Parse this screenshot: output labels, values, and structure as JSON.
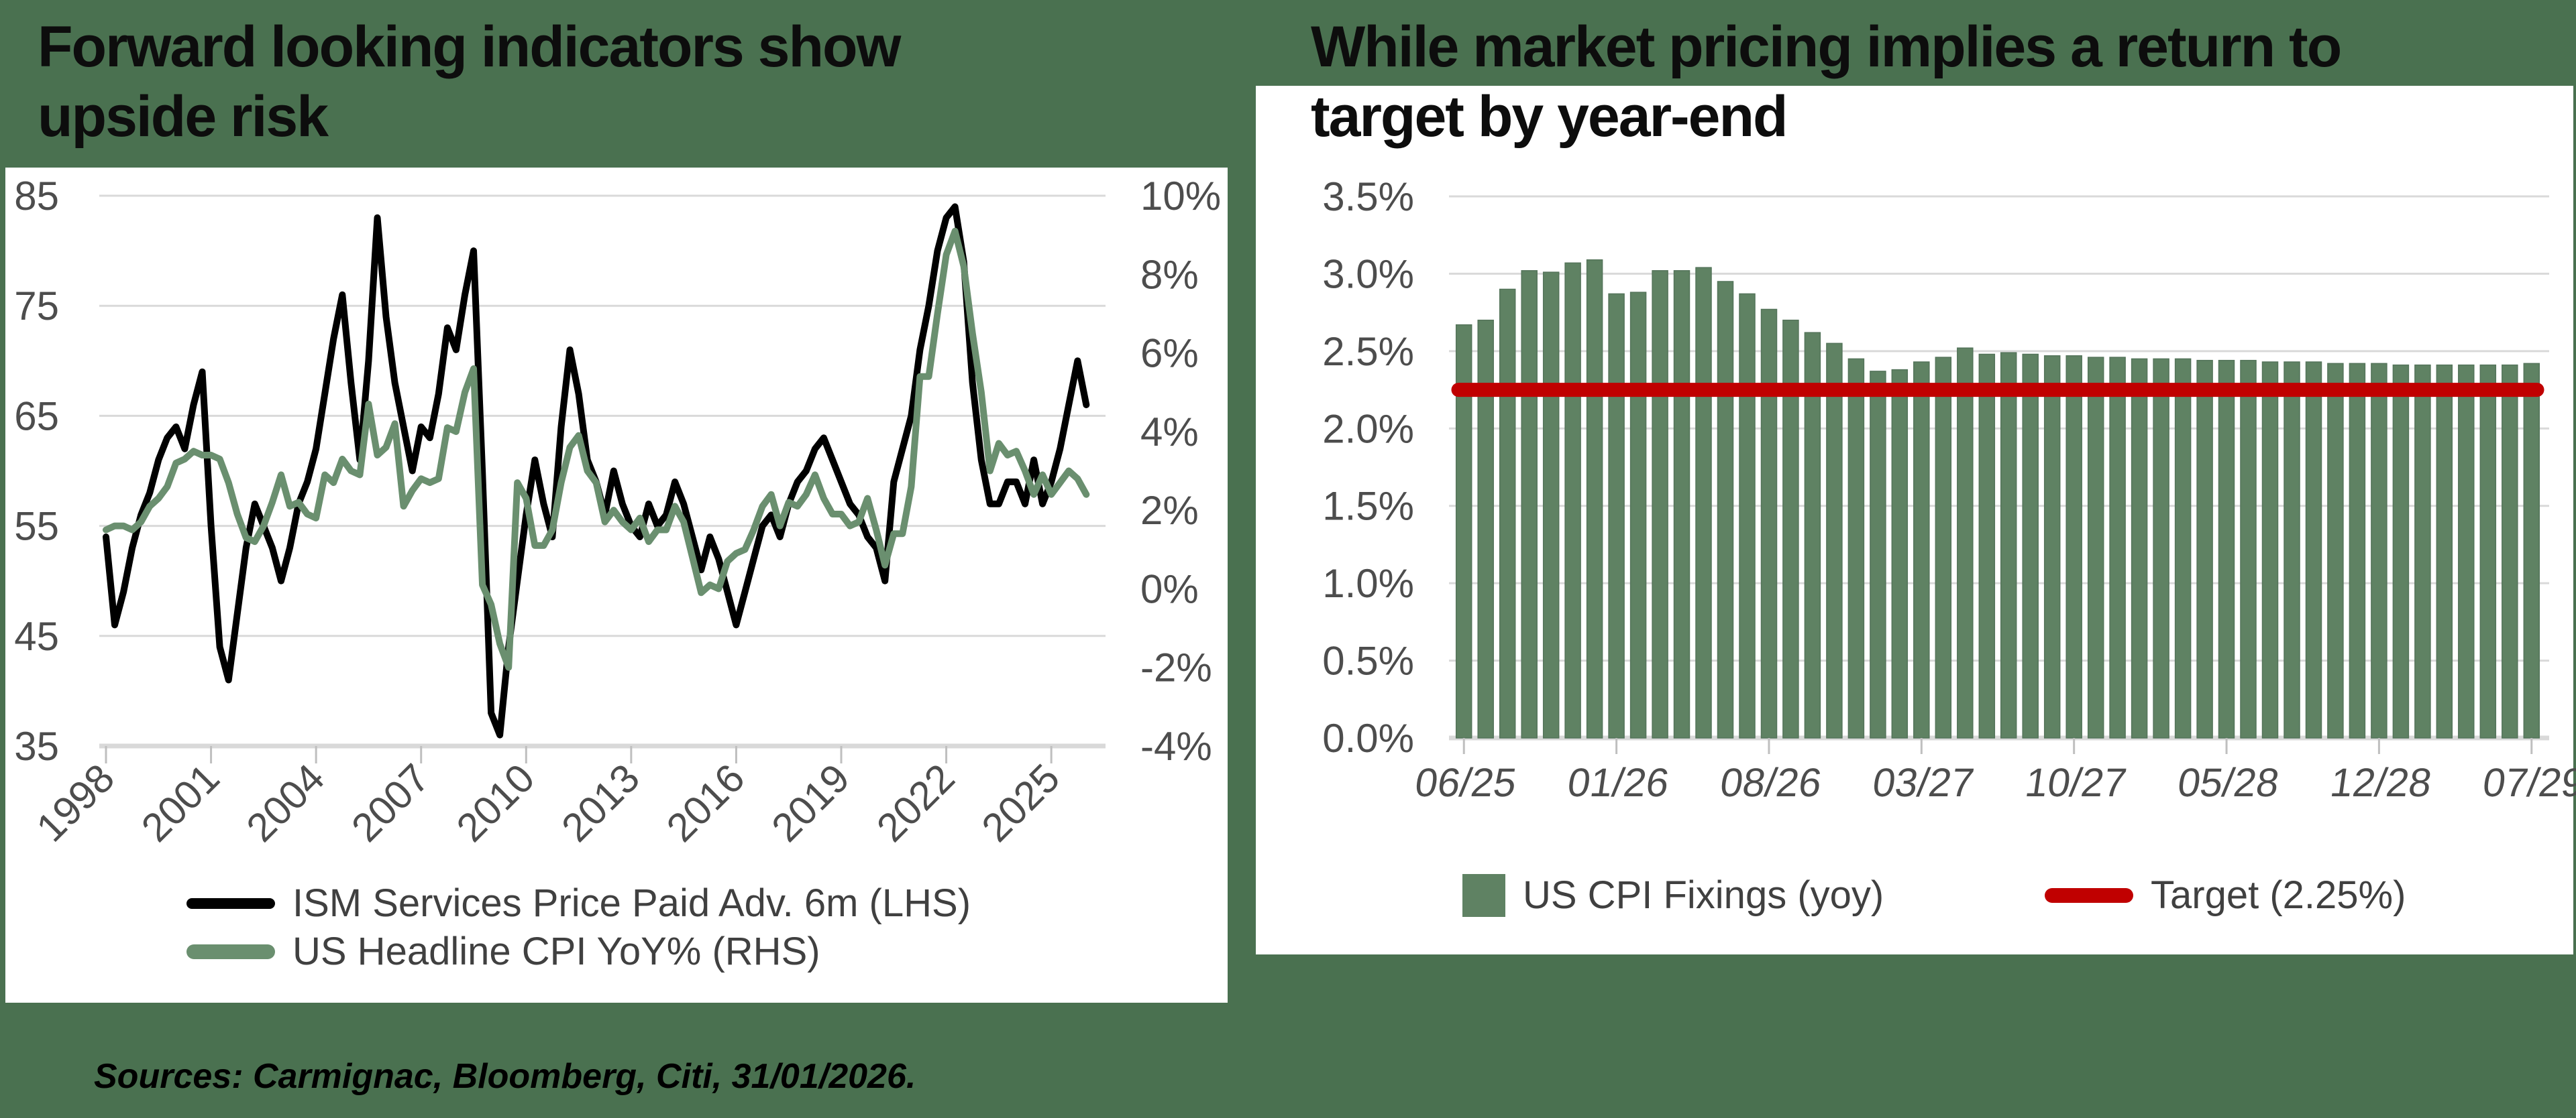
{
  "colors": {
    "background": "#4a7150",
    "panel": "#ffffff",
    "gridline": "#d9d9d9",
    "tick": "#bfbfbf",
    "axis_text": "#4d4d4d",
    "title_text": "#0d0d0d",
    "legend_text": "#404040",
    "line_black": "#000000",
    "line_green": "#6a8f6f",
    "bar_green": "#5f8263",
    "target_red": "#c00000"
  },
  "titles": {
    "left": [
      "Forward looking indicators show",
      "upside risk"
    ],
    "right": [
      "While market pricing implies a return to",
      "target by year-end"
    ]
  },
  "sources": "Sources: Carmignac, Bloomberg, Citi, 31/01/2026.",
  "chart_data": [
    {
      "type": "line",
      "title": "Forward looking indicators show upside risk",
      "left_axis": {
        "min": 35,
        "max": 85,
        "ticks": [
          "85",
          "75",
          "65",
          "55",
          "45",
          "35"
        ]
      },
      "right_axis": {
        "min": -4,
        "max": 10,
        "ticks": [
          "10%",
          "8%",
          "6%",
          "4%",
          "2%",
          "0%",
          "-2%",
          "-4%"
        ]
      },
      "x_axis": {
        "min": 1998,
        "max": 2026.3,
        "label_years": [
          1998,
          2001,
          2004,
          2007,
          2010,
          2013,
          2016,
          2019,
          2022,
          2025
        ],
        "labels": [
          "1998",
          "2001",
          "2004",
          "2007",
          "2010",
          "2013",
          "2016",
          "2019",
          "2022",
          "2025"
        ]
      },
      "grid": true,
      "legend_position": "bottom",
      "series": [
        {
          "name": "ISM Services Price Paid Adv. 6m (LHS)",
          "axis": "left",
          "color": "#000000",
          "data_name": "ism-services-line",
          "x_start": 1998,
          "x_step": 0.25,
          "values": [
            54,
            46,
            49,
            53,
            56,
            58,
            61,
            63,
            64,
            62,
            66,
            69,
            55,
            44,
            41,
            47,
            53,
            57,
            55,
            53,
            50,
            53,
            57,
            59,
            62,
            67,
            72,
            76,
            68,
            61,
            70,
            83,
            74,
            68,
            64,
            60,
            64,
            63,
            67,
            73,
            71,
            76,
            80,
            60,
            38,
            36,
            44,
            50,
            56,
            61,
            57,
            54,
            64,
            71,
            67,
            61,
            59,
            56,
            60,
            57,
            55,
            54,
            57,
            55,
            56,
            59,
            57,
            54,
            51,
            54,
            52,
            49,
            46,
            49,
            52,
            55,
            56,
            54,
            57,
            59,
            60,
            62,
            63,
            61,
            59,
            57,
            56,
            54,
            53,
            50,
            59,
            62,
            65,
            71,
            75,
            80,
            83,
            84,
            79,
            68,
            61,
            57,
            57,
            59,
            59,
            57,
            61,
            57,
            59,
            62,
            66,
            70,
            66
          ]
        },
        {
          "name": "US Headline CPI YoY% (RHS)",
          "axis": "right",
          "color": "#6a8f6f",
          "data_name": "us-cpi-line",
          "x_start": 1998,
          "x_step": 0.25,
          "values": [
            1.5,
            1.6,
            1.6,
            1.5,
            1.7,
            2.1,
            2.3,
            2.6,
            3.2,
            3.3,
            3.5,
            3.4,
            3.4,
            3.3,
            2.7,
            1.9,
            1.3,
            1.2,
            1.6,
            2.2,
            2.9,
            2.1,
            2.2,
            1.9,
            1.8,
            2.9,
            2.7,
            3.3,
            3.0,
            2.9,
            4.7,
            3.4,
            3.6,
            4.2,
            2.1,
            2.5,
            2.8,
            2.7,
            2.8,
            4.1,
            4.0,
            5.0,
            5.6,
            0.1,
            -0.4,
            -1.4,
            -2.0,
            2.7,
            2.3,
            1.1,
            1.1,
            1.5,
            2.7,
            3.6,
            3.9,
            3.0,
            2.7,
            1.7,
            2.0,
            1.7,
            1.5,
            1.8,
            1.2,
            1.5,
            1.5,
            2.1,
            1.7,
            0.8,
            -0.1,
            0.1,
            0.0,
            0.7,
            0.9,
            1.0,
            1.5,
            2.1,
            2.4,
            1.6,
            2.2,
            2.1,
            2.4,
            2.9,
            2.3,
            1.9,
            1.9,
            1.6,
            1.7,
            2.3,
            1.5,
            0.6,
            1.4,
            1.4,
            2.6,
            5.4,
            5.4,
            7.0,
            8.5,
            9.1,
            8.2,
            6.5,
            5.0,
            3.0,
            3.7,
            3.4,
            3.5,
            3.0,
            2.4,
            2.9,
            2.4,
            2.7,
            3.0,
            2.8,
            2.4
          ]
        }
      ]
    },
    {
      "type": "bar",
      "title": "While market pricing implies a return to target by year-end",
      "y_axis": {
        "min": 0,
        "max": 3.5,
        "ticks": [
          "3.5%",
          "3.0%",
          "2.5%",
          "2.0%",
          "1.5%",
          "1.0%",
          "0.5%",
          "0.0%"
        ]
      },
      "categories": [
        "06/25",
        "07/25",
        "08/25",
        "09/25",
        "10/25",
        "11/25",
        "12/25",
        "01/26",
        "02/26",
        "03/26",
        "04/26",
        "05/26",
        "06/26",
        "07/26",
        "08/26",
        "09/26",
        "10/26",
        "11/26",
        "12/26",
        "01/27",
        "02/27",
        "03/27",
        "04/27",
        "05/27",
        "06/27",
        "07/27",
        "08/27",
        "09/27",
        "10/27",
        "11/27",
        "12/27",
        "01/28",
        "02/28",
        "03/28",
        "04/28",
        "05/28",
        "06/28",
        "07/28",
        "08/28",
        "09/28",
        "10/28",
        "11/28",
        "12/28",
        "01/29",
        "02/29",
        "03/29",
        "04/29",
        "05/29",
        "06/29",
        "07/29"
      ],
      "values": [
        2.67,
        2.7,
        2.9,
        3.02,
        3.01,
        3.07,
        3.09,
        2.87,
        2.88,
        3.02,
        3.02,
        3.04,
        2.95,
        2.87,
        2.77,
        2.7,
        2.62,
        2.55,
        2.45,
        2.37,
        2.38,
        2.43,
        2.46,
        2.52,
        2.48,
        2.49,
        2.48,
        2.47,
        2.47,
        2.46,
        2.46,
        2.45,
        2.45,
        2.45,
        2.44,
        2.44,
        2.44,
        2.43,
        2.43,
        2.43,
        2.42,
        2.42,
        2.42,
        2.41,
        2.41,
        2.41,
        2.41,
        2.41,
        2.41,
        2.42
      ],
      "x_axis": {
        "tick_indices": [
          0,
          7,
          14,
          21,
          28,
          35,
          42,
          49
        ],
        "tick_labels": [
          "06/25",
          "01/26",
          "08/26",
          "03/27",
          "10/27",
          "05/28",
          "12/28",
          "07/29"
        ]
      },
      "target": {
        "value": 2.25,
        "color": "#c00000"
      },
      "legend": [
        {
          "label": "US CPI Fixings (yoy)",
          "swatch": "square-green"
        },
        {
          "label": "Target (2.25%)",
          "swatch": "line-red"
        }
      ]
    }
  ]
}
